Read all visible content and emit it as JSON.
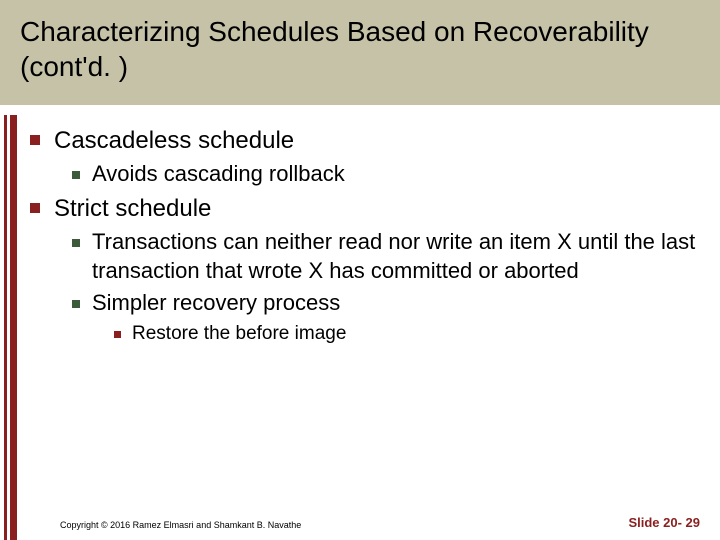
{
  "title": "Characterizing Schedules Based on Recoverability (cont'd. )",
  "items": {
    "i0": "Cascadeless schedule",
    "i0_0": "Avoids cascading rollback",
    "i1": "Strict schedule",
    "i1_0": "Transactions can neither read nor write an item X until the last transaction that wrote X has committed or aborted",
    "i1_1": "Simpler recovery process",
    "i1_1_0": "Restore the before image"
  },
  "footer": {
    "copyright": "Copyright © 2016 Ramez Elmasri and Shamkant B. Navathe",
    "slide": "Slide 20- 29"
  },
  "colors": {
    "title_bg": "#c5c2a7",
    "accent": "#8a1f1f",
    "bullet2": "#3b5b3b"
  }
}
